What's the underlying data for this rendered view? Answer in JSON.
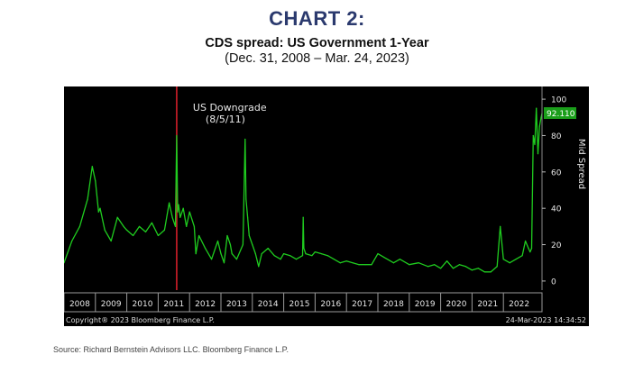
{
  "header": {
    "label": "CHART 2:",
    "title": "CDS spread: US Government 1-Year",
    "subtitle": "(Dec. 31, 2008 – Mar. 24, 2023)"
  },
  "footer": {
    "source": "Source:  Richard Bernstein Advisors LLC.  Bloomberg Finance L.P."
  },
  "chart_data": {
    "type": "line",
    "title": "CDS spread: US Government 1-Year",
    "ylabel": "Mid Spread",
    "xlabel": "",
    "ylim": [
      -5,
      105
    ],
    "xlim": [
      2008.0,
      2023.23
    ],
    "yticks": [
      0,
      20,
      40,
      60,
      80,
      100
    ],
    "year_labels": [
      "2008",
      "2009",
      "2010",
      "2011",
      "2012",
      "2013",
      "2014",
      "2015",
      "2016",
      "2017",
      "2018",
      "2019",
      "2020",
      "2021",
      "2022"
    ],
    "grid": false,
    "line_color": "#1fcc1f",
    "background": "#000000",
    "last_value_label": "92.110",
    "annotation": {
      "text_line1": "US Downgrade",
      "text_line2": "(8/5/11)",
      "x": 2011.59,
      "color": "#e0202c"
    },
    "copyright": "Copyright® 2023 Bloomberg Finance L.P.",
    "timestamp": "24-Mar-2023 14:34:52",
    "series": [
      {
        "x": [
          2008.0,
          2008.25,
          2008.5,
          2008.75,
          2008.9,
          2009.0,
          2009.1,
          2009.15,
          2009.3,
          2009.5,
          2009.7,
          2009.9,
          2010.0,
          2010.2,
          2010.4,
          2010.6,
          2010.8,
          2011.0,
          2011.2,
          2011.35,
          2011.45,
          2011.55,
          2011.59,
          2011.62,
          2011.65,
          2011.7,
          2011.8,
          2011.9,
          2012.0,
          2012.15,
          2012.2,
          2012.3,
          2012.5,
          2012.7,
          2012.9,
          2013.0,
          2013.1,
          2013.2,
          2013.3,
          2013.35,
          2013.5,
          2013.7,
          2013.77,
          2013.8,
          2013.85,
          2013.9,
          2014.0,
          2014.1,
          2014.2,
          2014.3,
          2014.5,
          2014.7,
          2014.9,
          2015.0,
          2015.2,
          2015.4,
          2015.6,
          2015.62,
          2015.64,
          2015.7,
          2015.9,
          2016.0,
          2016.2,
          2016.4,
          2016.6,
          2016.8,
          2017.0,
          2017.2,
          2017.4,
          2017.6,
          2017.8,
          2018.0,
          2018.2,
          2018.5,
          2018.7,
          2019.0,
          2019.3,
          2019.6,
          2019.8,
          2020.0,
          2020.2,
          2020.25,
          2020.4,
          2020.6,
          2020.8,
          2021.0,
          2021.2,
          2021.4,
          2021.6,
          2021.8,
          2021.9,
          2022.0,
          2022.2,
          2022.4,
          2022.6,
          2022.7,
          2022.8,
          2022.85,
          2022.9,
          2022.95,
          2023.0,
          2023.05,
          2023.1,
          2023.15,
          2023.2,
          2023.23
        ],
        "values": [
          10,
          22,
          30,
          45,
          63,
          55,
          38,
          40,
          28,
          22,
          35,
          30,
          28,
          25,
          30,
          27,
          32,
          25,
          28,
          43,
          35,
          30,
          80,
          38,
          42,
          35,
          40,
          30,
          38,
          30,
          15,
          25,
          18,
          12,
          22,
          15,
          10,
          25,
          20,
          15,
          12,
          20,
          78,
          45,
          35,
          25,
          20,
          15,
          8,
          15,
          18,
          14,
          12,
          15,
          14,
          12,
          14,
          35,
          18,
          15,
          14,
          16,
          15,
          14,
          12,
          10,
          11,
          10,
          9,
          9,
          9,
          15,
          13,
          10,
          12,
          9,
          10,
          8,
          9,
          7,
          11,
          10,
          7,
          9,
          8,
          6,
          7,
          5,
          5,
          8,
          30,
          12,
          10,
          12,
          14,
          22,
          18,
          16,
          18,
          80,
          75,
          95,
          70,
          85,
          90,
          92.11
        ]
      }
    ]
  }
}
